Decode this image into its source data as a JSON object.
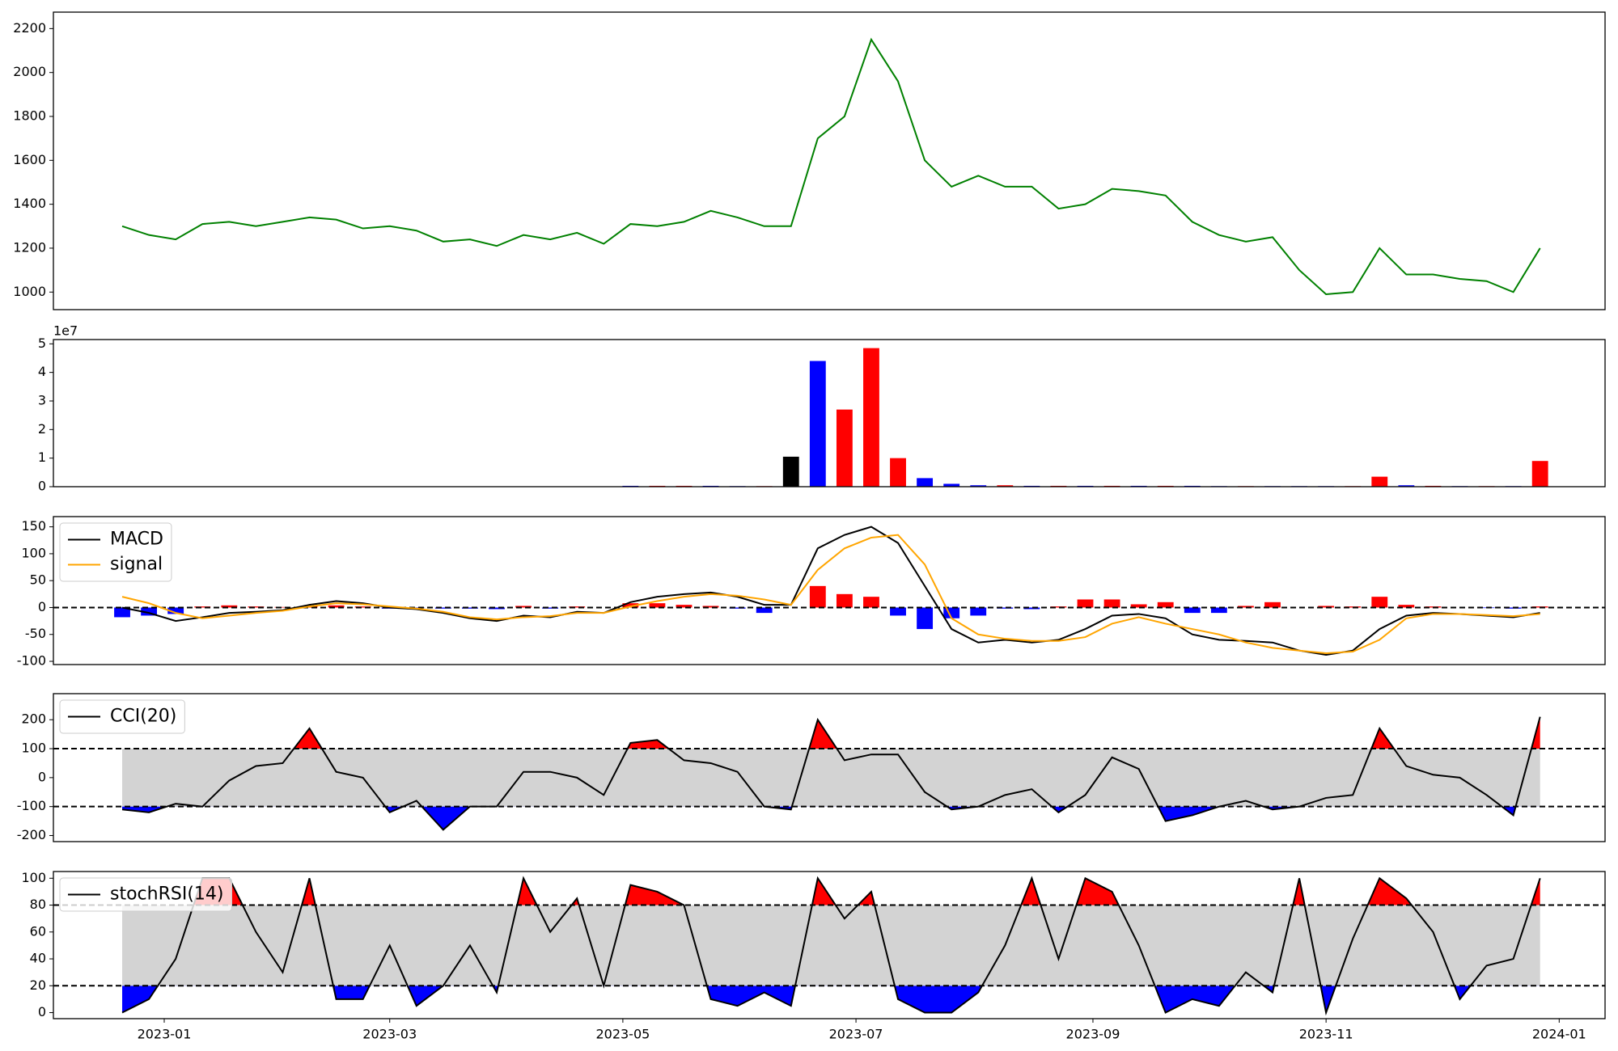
{
  "chart_data": [
    {
      "type": "line",
      "x": [
        "2022-12-21",
        "2022-12-28",
        "2023-01-04",
        "2023-01-11",
        "2023-01-18",
        "2023-01-25",
        "2023-02-01",
        "2023-02-08",
        "2023-02-15",
        "2023-02-22",
        "2023-03-01",
        "2023-03-08",
        "2023-03-15",
        "2023-03-22",
        "2023-03-29",
        "2023-04-05",
        "2023-04-12",
        "2023-04-19",
        "2023-04-26",
        "2023-05-03",
        "2023-05-10",
        "2023-05-17",
        "2023-05-24",
        "2023-05-31",
        "2023-06-07",
        "2023-06-14",
        "2023-06-21",
        "2023-06-28",
        "2023-07-05",
        "2023-07-12",
        "2023-07-19",
        "2023-07-26",
        "2023-08-02",
        "2023-08-09",
        "2023-08-16",
        "2023-08-23",
        "2023-08-30",
        "2023-09-06",
        "2023-09-13",
        "2023-09-20",
        "2023-09-27",
        "2023-10-04",
        "2023-10-11",
        "2023-10-18",
        "2023-10-25",
        "2023-11-01",
        "2023-11-08",
        "2023-11-15",
        "2023-11-22",
        "2023-11-29",
        "2023-12-06",
        "2023-12-13",
        "2023-12-20",
        "2023-12-27"
      ],
      "xlim": [
        "2022-12-03",
        "2024-01-13"
      ],
      "series": [
        {
          "color": "#008000",
          "values": [
            1300,
            1260,
            1240,
            1310,
            1320,
            1300,
            1320,
            1340,
            1330,
            1290,
            1300,
            1280,
            1230,
            1240,
            1210,
            1260,
            1240,
            1270,
            1220,
            1310,
            1300,
            1320,
            1370,
            1340,
            1300,
            1300,
            1700,
            1800,
            2150,
            1960,
            1600,
            1480,
            1530,
            1480,
            1480,
            1380,
            1400,
            1470,
            1460,
            1440,
            1320,
            1260,
            1230,
            1250,
            1100,
            990,
            1000,
            1200,
            1080,
            1080,
            1060,
            1050,
            1000,
            1200
          ]
        }
      ],
      "ylim": [
        920,
        2275
      ],
      "yticks": [
        1000,
        1200,
        1400,
        1600,
        1800,
        2000,
        2200
      ]
    },
    {
      "type": "bar",
      "x": [
        "2022-12-21",
        "2022-12-28",
        "2023-01-04",
        "2023-01-11",
        "2023-01-18",
        "2023-01-25",
        "2023-02-01",
        "2023-02-08",
        "2023-02-15",
        "2023-02-22",
        "2023-03-01",
        "2023-03-08",
        "2023-03-15",
        "2023-03-22",
        "2023-03-29",
        "2023-04-05",
        "2023-04-12",
        "2023-04-19",
        "2023-04-26",
        "2023-05-03",
        "2023-05-10",
        "2023-05-17",
        "2023-05-24",
        "2023-05-31",
        "2023-06-07",
        "2023-06-14",
        "2023-06-21",
        "2023-06-28",
        "2023-07-05",
        "2023-07-12",
        "2023-07-19",
        "2023-07-26",
        "2023-08-02",
        "2023-08-09",
        "2023-08-16",
        "2023-08-23",
        "2023-08-30",
        "2023-09-06",
        "2023-09-13",
        "2023-09-20",
        "2023-09-27",
        "2023-10-04",
        "2023-10-11",
        "2023-10-18",
        "2023-10-25",
        "2023-11-01",
        "2023-11-08",
        "2023-11-15",
        "2023-11-22",
        "2023-11-29",
        "2023-12-06",
        "2023-12-13",
        "2023-12-20",
        "2023-12-27"
      ],
      "xlim": [
        "2022-12-03",
        "2024-01-13"
      ],
      "values": [
        0.01,
        0.01,
        0.01,
        0.01,
        0.01,
        0.01,
        0.01,
        0.01,
        0.01,
        0.01,
        0.01,
        0.01,
        0.01,
        0.01,
        0.01,
        0.01,
        0.01,
        0.01,
        0.01,
        0.03,
        0.03,
        0.03,
        0.03,
        0.02,
        0.02,
        1.05,
        4.4,
        2.7,
        4.85,
        1.0,
        0.3,
        0.1,
        0.05,
        0.05,
        0.03,
        0.03,
        0.03,
        0.03,
        0.03,
        0.03,
        0.03,
        0.02,
        0.02,
        0.02,
        0.02,
        0.02,
        0.02,
        0.35,
        0.05,
        0.03,
        0.02,
        0.02,
        0.02,
        0.9
      ],
      "colors": [
        "blue",
        "blue",
        "red",
        "blue",
        "red",
        "red",
        "blue",
        "red",
        "blue",
        "blue",
        "red",
        "blue",
        "blue",
        "blue",
        "red",
        "blue",
        "red",
        "blue",
        "blue",
        "blue",
        "red",
        "red",
        "blue",
        "blue",
        "red",
        "black",
        "blue",
        "red",
        "red",
        "red",
        "blue",
        "blue",
        "blue",
        "red",
        "blue",
        "red",
        "blue",
        "red",
        "blue",
        "red",
        "blue",
        "blue",
        "red",
        "blue",
        "blue",
        "blue",
        "red",
        "red",
        "blue",
        "red",
        "blue",
        "red",
        "blue",
        "red"
      ],
      "ylim": [
        0,
        5.15
      ],
      "yticks": [
        0,
        1,
        2,
        3,
        4,
        5
      ],
      "offset_label": "1e7"
    },
    {
      "type": "line",
      "x": [
        "2022-12-21",
        "2022-12-28",
        "2023-01-04",
        "2023-01-11",
        "2023-01-18",
        "2023-01-25",
        "2023-02-01",
        "2023-02-08",
        "2023-02-15",
        "2023-02-22",
        "2023-03-01",
        "2023-03-08",
        "2023-03-15",
        "2023-03-22",
        "2023-03-29",
        "2023-04-05",
        "2023-04-12",
        "2023-04-19",
        "2023-04-26",
        "2023-05-03",
        "2023-05-10",
        "2023-05-17",
        "2023-05-24",
        "2023-05-31",
        "2023-06-07",
        "2023-06-14",
        "2023-06-21",
        "2023-06-28",
        "2023-07-05",
        "2023-07-12",
        "2023-07-19",
        "2023-07-26",
        "2023-08-02",
        "2023-08-09",
        "2023-08-16",
        "2023-08-23",
        "2023-08-30",
        "2023-09-06",
        "2023-09-13",
        "2023-09-20",
        "2023-09-27",
        "2023-10-04",
        "2023-10-11",
        "2023-10-18",
        "2023-10-25",
        "2023-11-01",
        "2023-11-08",
        "2023-11-15",
        "2023-11-22",
        "2023-11-29",
        "2023-12-06",
        "2023-12-13",
        "2023-12-20",
        "2023-12-27"
      ],
      "xlim": [
        "2022-12-03",
        "2024-01-13"
      ],
      "bars": {
        "values": [
          -18,
          -15,
          -12,
          2,
          4,
          2,
          1,
          3,
          4,
          2,
          -2,
          -1,
          -2,
          -2,
          -3,
          3,
          -2,
          2,
          0,
          8,
          8,
          5,
          3,
          -2,
          -10,
          0,
          40,
          25,
          20,
          -15,
          -40,
          -20,
          -15,
          -2,
          -3,
          2,
          15,
          15,
          6,
          10,
          -10,
          -10,
          3,
          10,
          0,
          3,
          2,
          20,
          5,
          2,
          0,
          -1,
          -2,
          2
        ],
        "up_color": "red",
        "down_color": "blue"
      },
      "series": [
        {
          "name": "MACD",
          "color": "#000000",
          "values": [
            0,
            -10,
            -25,
            -18,
            -10,
            -8,
            -5,
            5,
            12,
            8,
            0,
            -3,
            -10,
            -20,
            -25,
            -15,
            -18,
            -8,
            -10,
            10,
            20,
            25,
            28,
            20,
            5,
            5,
            110,
            135,
            150,
            120,
            40,
            -40,
            -65,
            -60,
            -65,
            -60,
            -40,
            -15,
            -12,
            -20,
            -50,
            -60,
            -62,
            -65,
            -80,
            -88,
            -80,
            -40,
            -15,
            -10,
            -12,
            -15,
            -18,
            -10
          ]
        },
        {
          "name": "signal",
          "color": "#ffa500",
          "values": [
            20,
            8,
            -10,
            -20,
            -15,
            -10,
            -6,
            2,
            8,
            6,
            2,
            -2,
            -8,
            -18,
            -22,
            -18,
            -16,
            -10,
            -10,
            2,
            12,
            20,
            25,
            22,
            15,
            5,
            70,
            110,
            130,
            135,
            80,
            -20,
            -50,
            -58,
            -62,
            -62,
            -55,
            -30,
            -18,
            -30,
            -40,
            -50,
            -65,
            -75,
            -80,
            -85,
            -82,
            -60,
            -20,
            -12,
            -12,
            -14,
            -16,
            -12
          ]
        }
      ],
      "hlines": [
        0
      ],
      "ylim": [
        -106,
        169
      ],
      "yticks": [
        -100,
        -50,
        0,
        50,
        100,
        150
      ],
      "legend": "upper left"
    },
    {
      "type": "line",
      "x": [
        "2022-12-21",
        "2022-12-28",
        "2023-01-04",
        "2023-01-11",
        "2023-01-18",
        "2023-01-25",
        "2023-02-01",
        "2023-02-08",
        "2023-02-15",
        "2023-02-22",
        "2023-03-01",
        "2023-03-08",
        "2023-03-15",
        "2023-03-22",
        "2023-03-29",
        "2023-04-05",
        "2023-04-12",
        "2023-04-19",
        "2023-04-26",
        "2023-05-03",
        "2023-05-10",
        "2023-05-17",
        "2023-05-24",
        "2023-05-31",
        "2023-06-07",
        "2023-06-14",
        "2023-06-21",
        "2023-06-28",
        "2023-07-05",
        "2023-07-12",
        "2023-07-19",
        "2023-07-26",
        "2023-08-02",
        "2023-08-09",
        "2023-08-16",
        "2023-08-23",
        "2023-08-30",
        "2023-09-06",
        "2023-09-13",
        "2023-09-20",
        "2023-09-27",
        "2023-10-04",
        "2023-10-11",
        "2023-10-18",
        "2023-10-25",
        "2023-11-01",
        "2023-11-08",
        "2023-11-15",
        "2023-11-22",
        "2023-11-29",
        "2023-12-06",
        "2023-12-13",
        "2023-12-20",
        "2023-12-27"
      ],
      "xlim": [
        "2022-12-03",
        "2024-01-13"
      ],
      "series": [
        {
          "name": "CCI(20)",
          "color": "#000000",
          "values": [
            -110,
            -120,
            -90,
            -100,
            -10,
            40,
            50,
            170,
            20,
            0,
            -120,
            -80,
            -180,
            -100,
            -100,
            20,
            20,
            0,
            -60,
            120,
            130,
            60,
            50,
            20,
            -100,
            -110,
            200,
            60,
            80,
            80,
            -50,
            -110,
            -100,
            -60,
            -40,
            -120,
            -60,
            70,
            30,
            -150,
            -130,
            -100,
            -80,
            -110,
            -100,
            -70,
            -60,
            170,
            40,
            10,
            0,
            -60,
            -130,
            210
          ]
        }
      ],
      "bands": [
        -100,
        100
      ],
      "band_color": "#d3d3d3",
      "above_color": "red",
      "below_color": "blue",
      "ylim": [
        -221,
        290
      ],
      "yticks": [
        -200,
        -100,
        0,
        100,
        200
      ],
      "legend": "upper left"
    },
    {
      "type": "line",
      "x": [
        "2022-12-21",
        "2022-12-28",
        "2023-01-04",
        "2023-01-11",
        "2023-01-18",
        "2023-01-25",
        "2023-02-01",
        "2023-02-08",
        "2023-02-15",
        "2023-02-22",
        "2023-03-01",
        "2023-03-08",
        "2023-03-15",
        "2023-03-22",
        "2023-03-29",
        "2023-04-05",
        "2023-04-12",
        "2023-04-19",
        "2023-04-26",
        "2023-05-03",
        "2023-05-10",
        "2023-05-17",
        "2023-05-24",
        "2023-05-31",
        "2023-06-07",
        "2023-06-14",
        "2023-06-21",
        "2023-06-28",
        "2023-07-05",
        "2023-07-12",
        "2023-07-19",
        "2023-07-26",
        "2023-08-02",
        "2023-08-09",
        "2023-08-16",
        "2023-08-23",
        "2023-08-30",
        "2023-09-06",
        "2023-09-13",
        "2023-09-20",
        "2023-09-27",
        "2023-10-04",
        "2023-10-11",
        "2023-10-18",
        "2023-10-25",
        "2023-11-01",
        "2023-11-08",
        "2023-11-15",
        "2023-11-22",
        "2023-11-29",
        "2023-12-06",
        "2023-12-13",
        "2023-12-20",
        "2023-12-27"
      ],
      "xlim": [
        "2022-12-03",
        "2024-01-13"
      ],
      "xticks": [
        "2023-01",
        "2023-03",
        "2023-05",
        "2023-07",
        "2023-09",
        "2023-11",
        "2024-01"
      ],
      "series": [
        {
          "name": "stochRSI(14)",
          "color": "#000000",
          "values": [
            0,
            10,
            40,
            100,
            100,
            60,
            30,
            100,
            10,
            10,
            50,
            5,
            20,
            50,
            15,
            100,
            60,
            85,
            20,
            95,
            90,
            80,
            10,
            5,
            15,
            5,
            100,
            70,
            90,
            10,
            0,
            0,
            15,
            50,
            100,
            40,
            100,
            90,
            50,
            0,
            10,
            5,
            30,
            15,
            100,
            0,
            55,
            100,
            85,
            60,
            10,
            35,
            40,
            100
          ]
        }
      ],
      "bands": [
        20,
        80
      ],
      "band_color": "#d3d3d3",
      "above_color": "red",
      "below_color": "blue",
      "ylim": [
        -4.5,
        105
      ],
      "yticks": [
        0,
        20,
        40,
        60,
        80,
        100
      ],
      "legend": "upper left"
    }
  ]
}
